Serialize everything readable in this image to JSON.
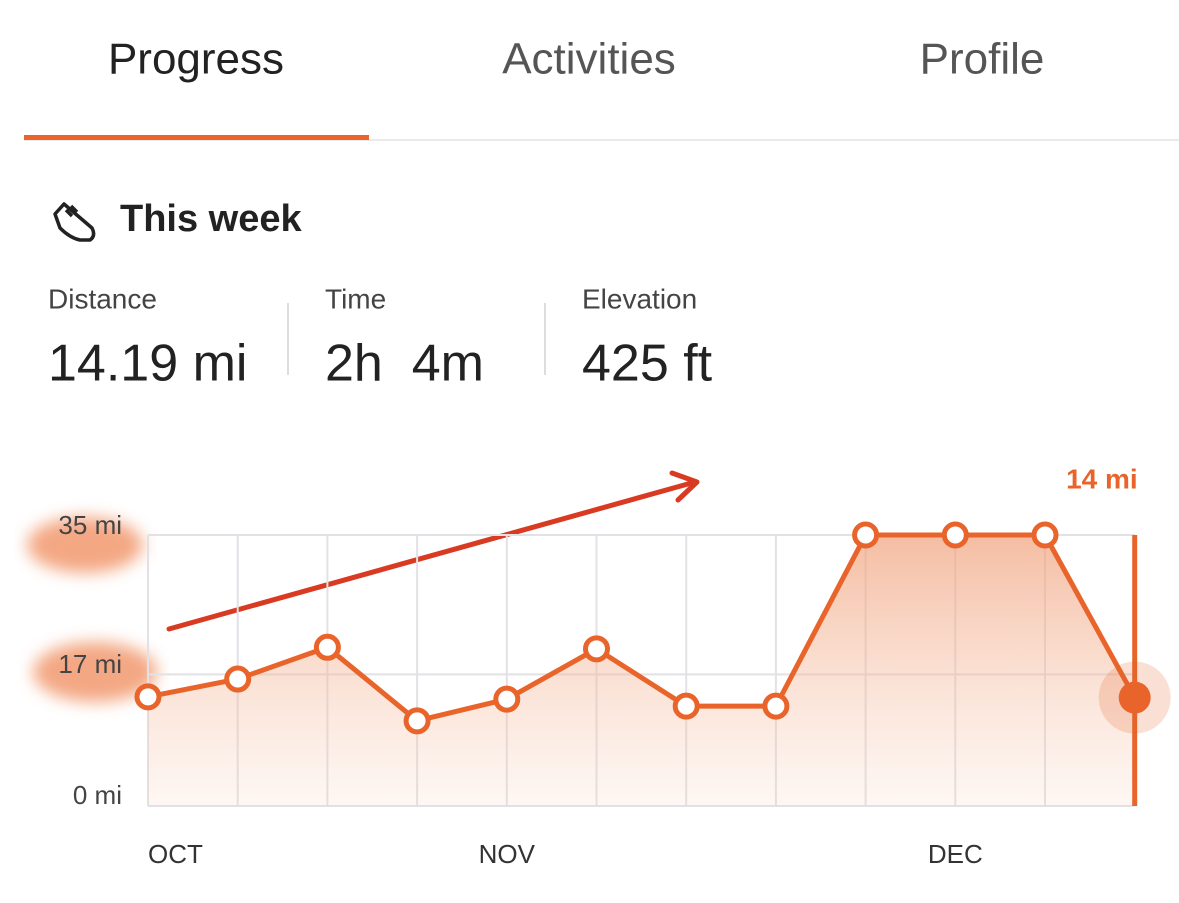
{
  "tabs": [
    {
      "label": "Progress",
      "active": true
    },
    {
      "label": "Activities",
      "active": false
    },
    {
      "label": "Profile",
      "active": false
    }
  ],
  "section": {
    "title": "This week",
    "stats": [
      {
        "label": "Distance",
        "value": "14.19 mi"
      },
      {
        "label": "Time",
        "value": "2h  4m"
      },
      {
        "label": "Elevation",
        "value": "425 ft"
      }
    ]
  },
  "chart_data": {
    "type": "line",
    "categories": [
      "OCT",
      null,
      null,
      null,
      "NOV",
      null,
      null,
      null,
      null,
      "DEC",
      null,
      null
    ],
    "values": [
      14.1,
      16.4,
      20.5,
      11.0,
      13.8,
      20.3,
      12.9,
      12.9,
      35,
      35,
      35,
      14
    ],
    "value_labels": [
      null,
      null,
      null,
      null,
      null,
      null,
      null,
      null,
      null,
      null,
      null,
      "14 mi"
    ],
    "color": "#e8642a",
    "ylim": [
      0,
      35
    ],
    "yticks": [
      {
        "value": 0,
        "label": "0 mi"
      },
      {
        "value": 17,
        "label": "17 mi"
      },
      {
        "value": 35,
        "label": "35 mi"
      }
    ],
    "grid": true
  }
}
